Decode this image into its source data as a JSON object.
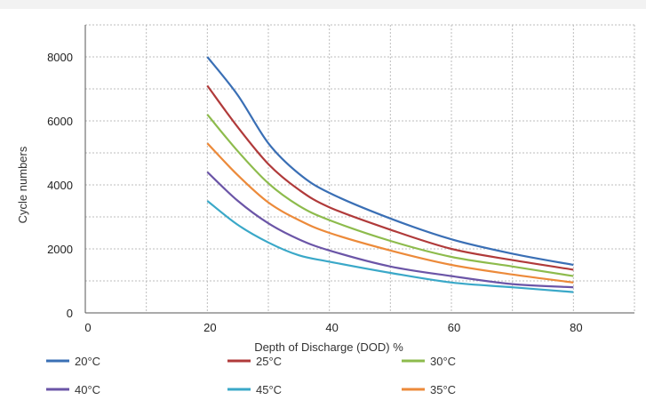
{
  "chart_data": {
    "type": "line",
    "title": "",
    "xlabel": "Depth of Discharge (DOD) %",
    "ylabel": "Cycle numbers",
    "xlim": [
      0,
      90
    ],
    "ylim": [
      0,
      9000
    ],
    "xticks": [
      0,
      20,
      40,
      60,
      80
    ],
    "yticks": [
      0,
      2000,
      4000,
      6000,
      8000
    ],
    "grid": true,
    "legend_position": "bottom",
    "x": [
      20,
      25,
      30,
      35,
      40,
      50,
      60,
      70,
      80
    ],
    "series": [
      {
        "name": "20°C",
        "color": "#3a6fb5",
        "values": [
          8000,
          6800,
          5300,
          4350,
          3750,
          2950,
          2300,
          1850,
          1500
        ]
      },
      {
        "name": "25°C",
        "color": "#b03a3a",
        "values": [
          7100,
          5800,
          4650,
          3850,
          3300,
          2600,
          2000,
          1650,
          1350
        ]
      },
      {
        "name": "30°C",
        "color": "#8dbb4c",
        "values": [
          6200,
          5050,
          4050,
          3350,
          2900,
          2250,
          1750,
          1450,
          1150
        ]
      },
      {
        "name": "40°C",
        "color": "#6b55a7",
        "values": [
          4400,
          3500,
          2800,
          2300,
          1950,
          1450,
          1150,
          900,
          800
        ]
      },
      {
        "name": "45°C",
        "color": "#3aa8c8",
        "values": [
          3500,
          2750,
          2200,
          1800,
          1600,
          1250,
          950,
          800,
          650
        ]
      },
      {
        "name": "35°C",
        "color": "#ec8a3a",
        "values": [
          5300,
          4300,
          3450,
          2900,
          2500,
          1950,
          1500,
          1200,
          950
        ]
      }
    ]
  }
}
